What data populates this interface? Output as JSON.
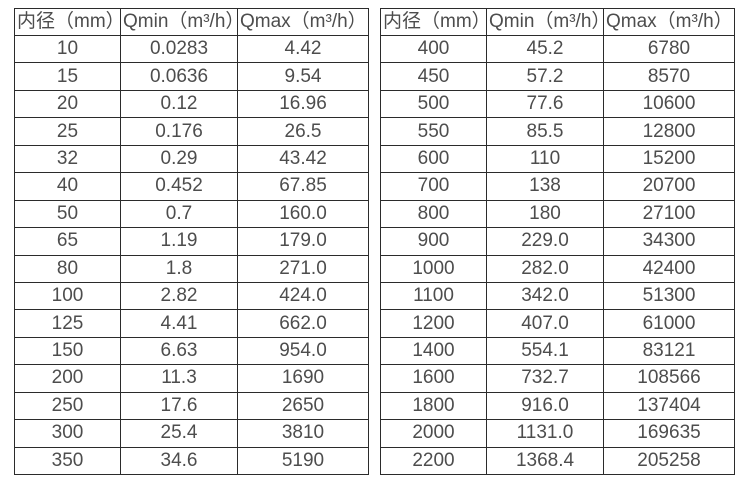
{
  "tables": [
    {
      "name": "flow-spec-table-small-diameters",
      "headers": [
        "内径（mm）",
        "Qmin（m³/h）",
        "Qmax（m³/h）"
      ],
      "rows": [
        [
          "10",
          "0.0283",
          "4.42"
        ],
        [
          "15",
          "0.0636",
          "9.54"
        ],
        [
          "20",
          "0.12",
          "16.96"
        ],
        [
          "25",
          "0.176",
          "26.5"
        ],
        [
          "32",
          "0.29",
          "43.42"
        ],
        [
          "40",
          "0.452",
          "67.85"
        ],
        [
          "50",
          "0.7",
          "160.0"
        ],
        [
          "65",
          "1.19",
          "179.0"
        ],
        [
          "80",
          "1.8",
          "271.0"
        ],
        [
          "100",
          "2.82",
          "424.0"
        ],
        [
          "125",
          "4.41",
          "662.0"
        ],
        [
          "150",
          "6.63",
          "954.0"
        ],
        [
          "200",
          "11.3",
          "1690"
        ],
        [
          "250",
          "17.6",
          "2650"
        ],
        [
          "300",
          "25.4",
          "3810"
        ],
        [
          "350",
          "34.6",
          "5190"
        ]
      ]
    },
    {
      "name": "flow-spec-table-large-diameters",
      "headers": [
        "内径（mm）",
        "Qmin（m³/h）",
        "Qmax（m³/h）"
      ],
      "rows": [
        [
          "400",
          "45.2",
          "6780"
        ],
        [
          "450",
          "57.2",
          "8570"
        ],
        [
          "500",
          "77.6",
          "10600"
        ],
        [
          "550",
          "85.5",
          "12800"
        ],
        [
          "600",
          "110",
          "15200"
        ],
        [
          "700",
          "138",
          "20700"
        ],
        [
          "800",
          "180",
          "27100"
        ],
        [
          "900",
          "229.0",
          "34300"
        ],
        [
          "1000",
          "282.0",
          "42400"
        ],
        [
          "1100",
          "342.0",
          "51300"
        ],
        [
          "1200",
          "407.0",
          "61000"
        ],
        [
          "1400",
          "554.1",
          "83121"
        ],
        [
          "1600",
          "732.7",
          "108566"
        ],
        [
          "1800",
          "916.0",
          "137404"
        ],
        [
          "2000",
          "1131.0",
          "169635"
        ],
        [
          "2200",
          "1368.4",
          "205258"
        ]
      ]
    }
  ],
  "colors": {
    "border": "#2b2b2b",
    "text": "#4d4d4d",
    "background": "#ffffff"
  }
}
